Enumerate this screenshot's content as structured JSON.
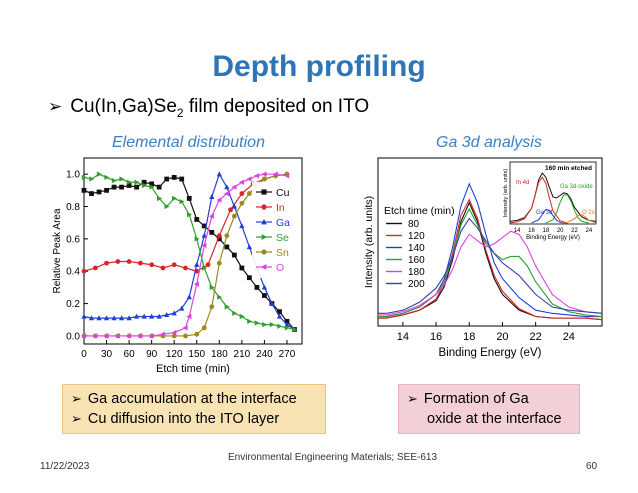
{
  "slide": {
    "title": "Depth profiling",
    "bullet_prefix": "Cu(In,Ga)Se",
    "bullet_sub": "2",
    "bullet_suffix": " film deposited on ITO"
  },
  "left_panel": {
    "title": "Elemental distribution"
  },
  "right_panel": {
    "title": "Ga 3d analysis"
  },
  "notes": {
    "left": [
      "Ga accumulation at the interface",
      "Cu diffusion into the ITO layer"
    ],
    "right": [
      "Formation of Ga",
      "oxide at the interface"
    ]
  },
  "footer": {
    "date": "11/22/2023",
    "course": "Environmental Engineering Materials; SEE-613",
    "page": "60"
  },
  "chart_data": [
    {
      "type": "line",
      "xlabel": "Etch time (min)",
      "ylabel": "Relative Peak Area",
      "xlim": [
        0,
        290
      ],
      "ylim": [
        -0.05,
        1.1
      ],
      "xticks": [
        0,
        30,
        60,
        90,
        120,
        150,
        180,
        210,
        240,
        270
      ],
      "yticks": [
        0.0,
        0.2,
        0.4,
        0.6,
        0.8,
        1.0
      ],
      "legend_position": "right",
      "grid": false,
      "series": [
        {
          "name": "Cu",
          "color": "#111111",
          "marker": "square",
          "x": [
            0,
            10,
            20,
            30,
            40,
            50,
            60,
            70,
            80,
            90,
            100,
            110,
            120,
            130,
            140,
            150,
            160,
            170,
            180,
            190,
            200,
            210,
            220,
            230,
            240,
            250,
            260,
            270,
            280
          ],
          "y": [
            0.9,
            0.88,
            0.89,
            0.9,
            0.92,
            0.92,
            0.93,
            0.92,
            0.95,
            0.94,
            0.92,
            0.97,
            0.98,
            0.97,
            0.85,
            0.72,
            0.68,
            0.64,
            0.6,
            0.55,
            0.5,
            0.42,
            0.36,
            0.3,
            0.25,
            0.2,
            0.15,
            0.09,
            0.04
          ]
        },
        {
          "name": "In",
          "color": "#d62728",
          "marker": "circle",
          "x": [
            0,
            15,
            30,
            45,
            60,
            75,
            90,
            105,
            120,
            135,
            150,
            165,
            180,
            195,
            210,
            225,
            240,
            255,
            270
          ],
          "y": [
            0.4,
            0.42,
            0.45,
            0.46,
            0.46,
            0.45,
            0.44,
            0.42,
            0.44,
            0.42,
            0.4,
            0.44,
            0.62,
            0.78,
            0.88,
            0.94,
            0.97,
            0.99,
            1.0
          ]
        },
        {
          "name": "Ga",
          "color": "#1f3fd6",
          "marker": "triangle-up",
          "x": [
            0,
            10,
            20,
            30,
            40,
            50,
            60,
            70,
            80,
            90,
            100,
            110,
            120,
            130,
            140,
            150,
            160,
            170,
            180,
            190,
            200,
            210,
            220,
            230,
            240,
            250,
            260,
            270,
            280
          ],
          "y": [
            0.12,
            0.11,
            0.11,
            0.11,
            0.11,
            0.11,
            0.11,
            0.12,
            0.12,
            0.12,
            0.12,
            0.13,
            0.14,
            0.17,
            0.24,
            0.44,
            0.62,
            0.86,
            1.0,
            0.92,
            0.8,
            0.68,
            0.55,
            0.42,
            0.3,
            0.2,
            0.12,
            0.07,
            0.04
          ]
        },
        {
          "name": "Se",
          "color": "#2ca02c",
          "marker": "triangle-right",
          "x": [
            0,
            10,
            20,
            30,
            40,
            50,
            60,
            70,
            80,
            90,
            100,
            110,
            120,
            130,
            140,
            150,
            160,
            170,
            180,
            190,
            200,
            210,
            220,
            230,
            240,
            250,
            260,
            270,
            280
          ],
          "y": [
            0.98,
            0.97,
            1.0,
            0.98,
            0.96,
            0.97,
            0.95,
            0.95,
            0.93,
            0.92,
            0.85,
            0.8,
            0.85,
            0.83,
            0.75,
            0.6,
            0.42,
            0.3,
            0.24,
            0.18,
            0.14,
            0.12,
            0.09,
            0.08,
            0.07,
            0.07,
            0.06,
            0.05,
            0.04
          ]
        },
        {
          "name": "Sn",
          "color": "#9c8a1d",
          "marker": "circle",
          "x": [
            0,
            15,
            30,
            45,
            60,
            75,
            90,
            105,
            120,
            135,
            150,
            160,
            170,
            180,
            190,
            200,
            210,
            220,
            230,
            240,
            255,
            270
          ],
          "y": [
            0.0,
            0.0,
            0.0,
            0.0,
            0.0,
            0.0,
            0.0,
            0.0,
            0.0,
            0.0,
            0.01,
            0.05,
            0.18,
            0.45,
            0.62,
            0.74,
            0.82,
            0.88,
            0.93,
            0.97,
            0.99,
            1.0
          ]
        },
        {
          "name": "O",
          "color": "#e040e0",
          "marker": "triangle-left",
          "x": [
            0,
            15,
            30,
            45,
            60,
            75,
            90,
            105,
            120,
            135,
            140,
            150,
            160,
            170,
            180,
            190,
            200,
            210,
            220,
            230,
            240,
            255,
            270
          ],
          "y": [
            0.0,
            0.0,
            0.0,
            0.0,
            0.0,
            0.0,
            0.0,
            0.01,
            0.02,
            0.05,
            0.12,
            0.32,
            0.56,
            0.74,
            0.84,
            0.88,
            0.92,
            0.95,
            0.97,
            0.99,
            1.0,
            1.0,
            0.99
          ]
        }
      ]
    },
    {
      "type": "line",
      "xlabel": "Binding Energy (eV)",
      "ylabel": "Intensity (arb. units)",
      "xlim": [
        12.5,
        26
      ],
      "xticks": [
        14,
        16,
        18,
        20,
        22,
        24
      ],
      "legend_title": "Etch time (min)",
      "legend_position": "left",
      "series": [
        {
          "name": "80",
          "color": "#111111",
          "x": [
            12.5,
            13,
            14,
            15,
            16,
            16.5,
            17,
            17.5,
            18,
            18.5,
            19,
            19.5,
            20,
            21,
            22,
            23,
            24,
            25,
            26
          ],
          "y": [
            0.05,
            0.05,
            0.07,
            0.1,
            0.16,
            0.25,
            0.42,
            0.66,
            0.78,
            0.66,
            0.46,
            0.3,
            0.2,
            0.1,
            0.06,
            0.05,
            0.05,
            0.05,
            0.04
          ]
        },
        {
          "name": "120",
          "color": "#d62728",
          "x": [
            12.5,
            13,
            14,
            15,
            16,
            16.5,
            17,
            17.5,
            18,
            18.5,
            19,
            19.5,
            20,
            21,
            22,
            23,
            24,
            25,
            26
          ],
          "y": [
            0.05,
            0.05,
            0.07,
            0.1,
            0.17,
            0.27,
            0.46,
            0.7,
            0.8,
            0.68,
            0.48,
            0.32,
            0.22,
            0.11,
            0.06,
            0.05,
            0.05,
            0.05,
            0.04
          ]
        },
        {
          "name": "140",
          "color": "#1f3fd6",
          "x": [
            12.5,
            13,
            14,
            15,
            16,
            16.5,
            17,
            17.5,
            18,
            18.5,
            19,
            19.5,
            20,
            21,
            22,
            23,
            24,
            25,
            26
          ],
          "y": [
            0.06,
            0.06,
            0.08,
            0.12,
            0.2,
            0.3,
            0.5,
            0.76,
            0.9,
            0.78,
            0.58,
            0.4,
            0.3,
            0.18,
            0.1,
            0.08,
            0.07,
            0.06,
            0.06
          ]
        },
        {
          "name": "160",
          "color": "#2ca02c",
          "x": [
            12.5,
            13,
            14,
            15,
            16,
            16.5,
            17,
            17.5,
            18,
            18.5,
            19,
            19.5,
            20,
            20.5,
            21,
            21.5,
            22,
            23,
            24,
            25,
            26
          ],
          "y": [
            0.06,
            0.06,
            0.08,
            0.12,
            0.2,
            0.28,
            0.44,
            0.64,
            0.74,
            0.64,
            0.52,
            0.46,
            0.42,
            0.44,
            0.44,
            0.38,
            0.28,
            0.14,
            0.09,
            0.07,
            0.06
          ]
        },
        {
          "name": "180",
          "color": "#e040e0",
          "x": [
            12.5,
            13,
            14,
            15,
            16,
            16.5,
            17,
            17.5,
            18,
            18.5,
            19,
            19.5,
            20,
            20.5,
            21,
            21.5,
            22,
            23,
            24,
            25,
            26
          ],
          "y": [
            0.07,
            0.07,
            0.09,
            0.13,
            0.2,
            0.26,
            0.36,
            0.5,
            0.58,
            0.54,
            0.5,
            0.52,
            0.56,
            0.6,
            0.58,
            0.5,
            0.38,
            0.2,
            0.12,
            0.09,
            0.08
          ]
        },
        {
          "name": "200",
          "color": "#3a3fa8",
          "x": [
            12.5,
            13,
            14,
            15,
            16,
            16.5,
            17,
            17.5,
            18,
            18.5,
            19,
            19.5,
            20,
            20.5,
            21,
            21.5,
            22,
            23,
            24,
            25,
            26
          ],
          "y": [
            0.08,
            0.08,
            0.1,
            0.15,
            0.24,
            0.32,
            0.44,
            0.6,
            0.68,
            0.62,
            0.54,
            0.46,
            0.4,
            0.36,
            0.32,
            0.26,
            0.2,
            0.12,
            0.1,
            0.09,
            0.08
          ]
        }
      ]
    },
    {
      "type": "line",
      "title": "160 min etched",
      "xlabel": "Binding Energy (eV)",
      "ylabel": "Intensity (arb. units)",
      "xlim": [
        13,
        25
      ],
      "xticks": [
        14,
        16,
        18,
        20,
        22,
        24
      ],
      "annotations": [
        "In 4d",
        "Ga 3d-oxide",
        "Ga 3d",
        "O 2s"
      ],
      "series": [
        {
          "color": "#111111",
          "x": [
            13,
            14,
            15,
            16,
            16.5,
            17,
            17.5,
            18,
            18.5,
            19,
            19.5,
            20,
            20.5,
            21,
            21.5,
            22,
            23,
            24,
            25
          ],
          "y": [
            0.05,
            0.07,
            0.12,
            0.3,
            0.55,
            0.85,
            0.98,
            0.9,
            0.7,
            0.52,
            0.5,
            0.55,
            0.6,
            0.58,
            0.48,
            0.32,
            0.14,
            0.07,
            0.05
          ]
        },
        {
          "color": "#d62728",
          "x": [
            13,
            14,
            15,
            16,
            16.5,
            17,
            17.5,
            18,
            18.5,
            19,
            20,
            21
          ],
          "y": [
            0.02,
            0.04,
            0.1,
            0.3,
            0.55,
            0.8,
            0.9,
            0.78,
            0.5,
            0.25,
            0.06,
            0.02
          ]
        },
        {
          "color": "#2ca02c",
          "x": [
            18,
            19,
            19.5,
            20,
            20.5,
            21,
            21.5,
            22,
            22.5,
            23,
            24
          ],
          "y": [
            0.02,
            0.08,
            0.22,
            0.42,
            0.56,
            0.56,
            0.44,
            0.26,
            0.12,
            0.05,
            0.02
          ]
        },
        {
          "color": "#1f3fd6",
          "x": [
            16,
            17,
            17.5,
            18,
            18.5,
            19,
            19.5,
            20,
            21
          ],
          "y": [
            0.02,
            0.08,
            0.18,
            0.28,
            0.26,
            0.16,
            0.07,
            0.03,
            0.01
          ]
        },
        {
          "color": "#e67e22",
          "x": [
            20,
            21,
            22,
            22.5,
            23,
            23.5,
            24,
            25
          ],
          "y": [
            0.01,
            0.03,
            0.1,
            0.16,
            0.18,
            0.14,
            0.07,
            0.02
          ]
        }
      ]
    }
  ]
}
